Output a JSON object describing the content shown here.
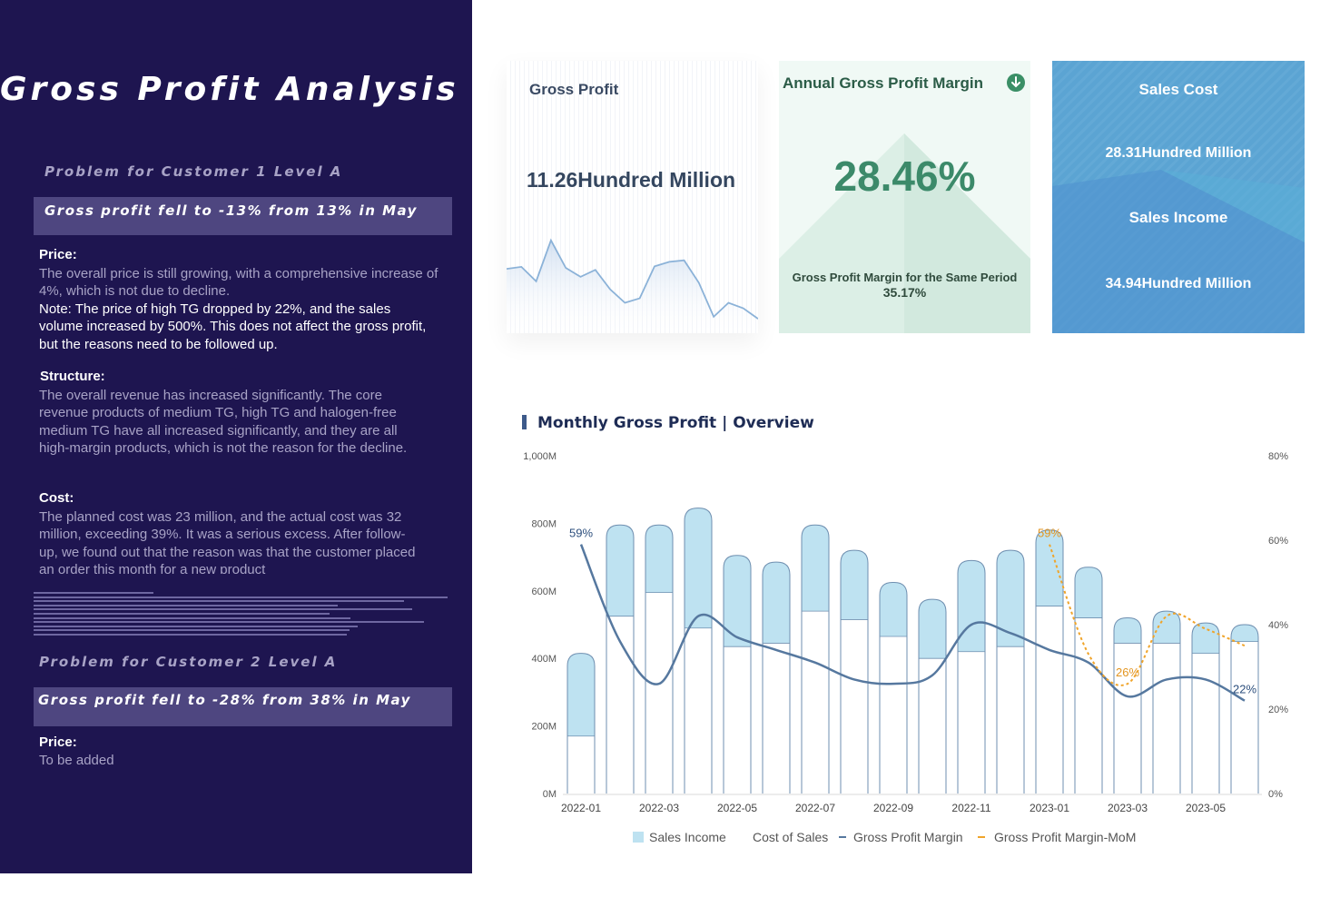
{
  "left_panel": {
    "title": "Gross Profit Analysis",
    "customer1": {
      "problem": "Problem for Customer 1    Level A",
      "banner": "Gross profit fell to -13% from 13% in May",
      "price_h": "Price:",
      "price_t": "The overall price is still growing, with a comprehensive increase of 4%, which is not due to decline.",
      "note_t": "Note: The price of high TG dropped by 22%, and the sales volume increased by 500%. This does not affect the gross profit, but the reasons need to be followed up.",
      "structure_h": "Structure:",
      "structure_t": "The overall revenue has increased significantly. The core revenue products of medium TG, high TG and halogen-free medium TG have all increased significantly, and they are all high-margin products, which is not the reason for the decline.",
      "cost_h": "Cost:",
      "cost_t": "The planned cost was 23 million, and the actual cost was 32 million, exceeding 39%. It was a serious excess. After follow-up, we found out that the reason was that the customer placed an order this month for a new product"
    },
    "customer2": {
      "problem": "Problem for Customer 2    Level A",
      "banner": "Gross profit fell to -28% from 38% in May",
      "price_h": "Price:",
      "price_t": "To be added"
    }
  },
  "cards": {
    "gross_profit": {
      "title": "Gross Profit",
      "value": "11.26Hundred Million"
    },
    "margin": {
      "title": "Annual Gross Profit Margin",
      "value": "28.46%",
      "sub_label": "Gross Profit Margin for the Same Period",
      "sub_value": "35.17%"
    },
    "sales": {
      "cost_label": "Sales Cost",
      "cost_value": "28.31Hundred Million",
      "income_label": "Sales Income",
      "income_value": "34.94Hundred Million"
    }
  },
  "sparkline": [
    0.38,
    0.42,
    0.13,
    0.95,
    0.4,
    0.22,
    0.36,
    -0.03,
    -0.3,
    -0.21,
    0.43,
    0.52,
    0.55,
    0.1,
    -0.58,
    -0.3,
    -0.41,
    -0.62
  ],
  "colors": {
    "panel": "#1e1550",
    "income": "#bee2f1",
    "cost": "#ffffff",
    "margin": "#56789f",
    "mom": "#f0a42a"
  },
  "chart": {
    "title": "Monthly Gross Profit |  Overview"
  },
  "chart_data": {
    "type": "bar",
    "title": "Monthly Gross Profit |  Overview",
    "categories": [
      "2022-01",
      "2022-02",
      "2022-03",
      "2022-04",
      "2022-05",
      "2022-06",
      "2022-07",
      "2022-08",
      "2022-09",
      "2022-10",
      "2022-11",
      "2022-12",
      "2023-01",
      "2023-02",
      "2023-03",
      "2023-04",
      "2023-05",
      "2023-06"
    ],
    "x_tick_labels": [
      "2022-01",
      "2022-03",
      "2022-05",
      "2022-07",
      "2022-09",
      "2022-11",
      "2023-01",
      "2023-03",
      "2023-05"
    ],
    "y_left": {
      "ticks": [
        "0M",
        "200M",
        "400M",
        "600M",
        "800M",
        "1,000M"
      ],
      "range": [
        0,
        1000
      ]
    },
    "y_right": {
      "ticks": [
        "0%",
        "20%",
        "40%",
        "60%",
        "80%"
      ],
      "range": [
        0,
        80
      ]
    },
    "series": [
      {
        "name": "Sales Income",
        "kind": "bar",
        "axis": "left",
        "values": [
          415,
          795,
          795,
          845,
          705,
          685,
          795,
          720,
          625,
          575,
          690,
          720,
          780,
          670,
          520,
          540,
          505,
          500
        ]
      },
      {
        "name": "Cost of Sales",
        "kind": "bar",
        "axis": "left",
        "values": [
          170,
          525,
          595,
          490,
          435,
          445,
          540,
          515,
          465,
          400,
          420,
          435,
          555,
          520,
          445,
          445,
          415,
          450
        ]
      },
      {
        "name": "Gross Profit Margin",
        "kind": "line",
        "axis": "right",
        "values": [
          59,
          36,
          26,
          42,
          37,
          34,
          31,
          27,
          26,
          28,
          40,
          38,
          34,
          31,
          23,
          27,
          27,
          22
        ]
      },
      {
        "name": "Gross Profit Margin-MoM",
        "kind": "line",
        "axis": "right",
        "dashed": true,
        "values": [
          null,
          null,
          null,
          null,
          null,
          null,
          null,
          null,
          null,
          null,
          null,
          null,
          59,
          33,
          26,
          42,
          39,
          35
        ]
      }
    ],
    "annotations": [
      {
        "series": "Gross Profit Margin",
        "category": "2022-01",
        "text": "59%"
      },
      {
        "series": "Gross Profit Margin",
        "category": "2023-06",
        "text": "22%"
      },
      {
        "series": "Gross Profit Margin-MoM",
        "category": "2023-01",
        "text": "59%"
      },
      {
        "series": "Gross Profit Margin-MoM",
        "category": "2023-03",
        "text": "26%"
      }
    ],
    "legend": [
      "Sales Income",
      "Cost of Sales",
      "Gross Profit Margin",
      "Gross Profit Margin-MoM"
    ],
    "legend_position": "bottom"
  }
}
